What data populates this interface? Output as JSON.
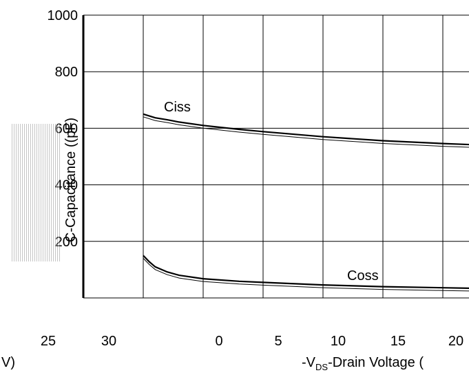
{
  "chart_data": {
    "type": "line",
    "title": "",
    "ylabel": "C-Capacitance (pF)",
    "ylabel_visible": "C-Capacitance (",
    "ylabel_unit": "(pF)",
    "xlabel": "-VDS-Drain Voltage (V)",
    "xlabel_prefix": "-V",
    "xlabel_sub": "DS",
    "xlabel_suffix": "-Drain Voltage (",
    "xlabel_left_fragment": "V)",
    "ylim": [
      0,
      1000
    ],
    "xlim": [
      0,
      30
    ],
    "grid": true,
    "y_ticks": [
      "1000",
      "800",
      "600",
      "400",
      "200"
    ],
    "x_ticks": [
      "0",
      "5",
      "10",
      "15",
      "20",
      "25",
      "30"
    ],
    "series": [
      {
        "name": "Ciss",
        "x": [
          0,
          1,
          2,
          3,
          5,
          8,
          10,
          15,
          20,
          25,
          30
        ],
        "values": [
          650,
          637,
          630,
          622,
          610,
          596,
          588,
          570,
          556,
          546,
          538
        ]
      },
      {
        "name": "Coss",
        "x": [
          0,
          0.5,
          1,
          2,
          3,
          5,
          8,
          10,
          15,
          20,
          25,
          30
        ],
        "values": [
          150,
          128,
          110,
          92,
          80,
          68,
          59,
          55,
          46,
          40,
          36,
          32
        ]
      }
    ]
  }
}
